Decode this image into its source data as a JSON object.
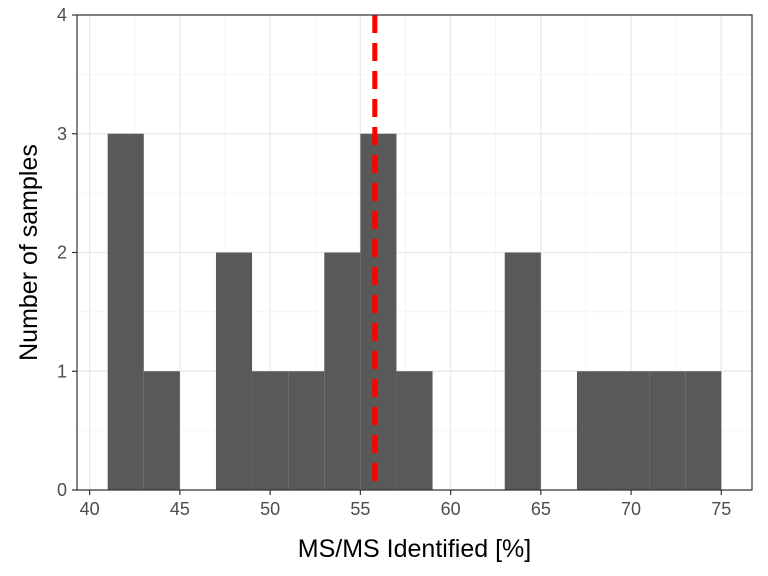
{
  "chart_data": {
    "type": "bar",
    "subtype": "histogram",
    "title": "",
    "xlabel": "MS/MS Identified [%]",
    "ylabel": "Number of samples",
    "xlim": [
      39.3,
      76.7
    ],
    "ylim": [
      0,
      4
    ],
    "x_ticks": [
      40,
      45,
      50,
      55,
      60,
      65,
      70,
      75
    ],
    "y_ticks": [
      0,
      1,
      2,
      3,
      4
    ],
    "bins": [
      {
        "start": 41,
        "end": 43,
        "count": 3
      },
      {
        "start": 43,
        "end": 45,
        "count": 1
      },
      {
        "start": 45,
        "end": 47,
        "count": 0
      },
      {
        "start": 47,
        "end": 49,
        "count": 2
      },
      {
        "start": 49,
        "end": 51,
        "count": 1
      },
      {
        "start": 51,
        "end": 53,
        "count": 1
      },
      {
        "start": 53,
        "end": 55,
        "count": 2
      },
      {
        "start": 55,
        "end": 57,
        "count": 3
      },
      {
        "start": 57,
        "end": 59,
        "count": 1
      },
      {
        "start": 59,
        "end": 61,
        "count": 0
      },
      {
        "start": 61,
        "end": 63,
        "count": 0
      },
      {
        "start": 63,
        "end": 65,
        "count": 2
      },
      {
        "start": 65,
        "end": 67,
        "count": 0
      },
      {
        "start": 67,
        "end": 69,
        "count": 1
      },
      {
        "start": 69,
        "end": 71,
        "count": 1
      },
      {
        "start": 71,
        "end": 73,
        "count": 1
      },
      {
        "start": 73,
        "end": 75,
        "count": 1
      }
    ],
    "reference_line": {
      "x": 55.8,
      "style": "dashed",
      "color": "#ff0000"
    },
    "bar_color": "#595959",
    "grid": true,
    "theme": "bw"
  }
}
